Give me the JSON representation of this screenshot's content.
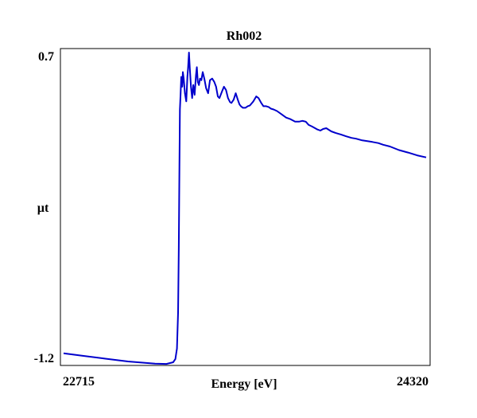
{
  "chart_data": {
    "type": "line",
    "title": "Rh002",
    "xlabel": "Energy [eV]",
    "ylabel": "µt",
    "xlim": [
      22715,
      24320
    ],
    "ylim": [
      -1.2,
      0.7
    ],
    "x_tick_labels": [
      "22715",
      "24320"
    ],
    "y_tick_labels": [
      "0.7",
      "-1.2"
    ],
    "grid": false,
    "legend": "none",
    "series": [
      {
        "color": "#0000cc",
        "points": [
          [
            22715,
            -1.15
          ],
          [
            22800,
            -1.165
          ],
          [
            22900,
            -1.183
          ],
          [
            23000,
            -1.2
          ],
          [
            23120,
            -1.213
          ],
          [
            23170,
            -1.215
          ],
          [
            23200,
            -1.205
          ],
          [
            23210,
            -1.185
          ],
          [
            23217,
            -1.12
          ],
          [
            23222,
            -0.9
          ],
          [
            23225,
            -0.5
          ],
          [
            23228,
            0.0
          ],
          [
            23230,
            0.35
          ],
          [
            23233,
            0.45
          ],
          [
            23236,
            0.55
          ],
          [
            23240,
            0.49
          ],
          [
            23243,
            0.58
          ],
          [
            23247,
            0.54
          ],
          [
            23252,
            0.45
          ],
          [
            23258,
            0.4
          ],
          [
            23263,
            0.55
          ],
          [
            23266,
            0.6
          ],
          [
            23270,
            0.7
          ],
          [
            23274,
            0.6
          ],
          [
            23279,
            0.49
          ],
          [
            23284,
            0.42
          ],
          [
            23289,
            0.5
          ],
          [
            23295,
            0.44
          ],
          [
            23301,
            0.56
          ],
          [
            23305,
            0.61
          ],
          [
            23309,
            0.52
          ],
          [
            23314,
            0.5
          ],
          [
            23319,
            0.54
          ],
          [
            23325,
            0.53
          ],
          [
            23331,
            0.58
          ],
          [
            23338,
            0.54
          ],
          [
            23346,
            0.48
          ],
          [
            23355,
            0.45
          ],
          [
            23363,
            0.53
          ],
          [
            23373,
            0.54
          ],
          [
            23382,
            0.52
          ],
          [
            23390,
            0.49
          ],
          [
            23398,
            0.43
          ],
          [
            23405,
            0.42
          ],
          [
            23416,
            0.46
          ],
          [
            23425,
            0.49
          ],
          [
            23434,
            0.47
          ],
          [
            23443,
            0.42
          ],
          [
            23452,
            0.395
          ],
          [
            23458,
            0.39
          ],
          [
            23468,
            0.41
          ],
          [
            23477,
            0.45
          ],
          [
            23486,
            0.41
          ],
          [
            23494,
            0.38
          ],
          [
            23500,
            0.37
          ],
          [
            23509,
            0.36
          ],
          [
            23520,
            0.36
          ],
          [
            23530,
            0.37
          ],
          [
            23540,
            0.375
          ],
          [
            23555,
            0.4
          ],
          [
            23568,
            0.43
          ],
          [
            23578,
            0.42
          ],
          [
            23590,
            0.39
          ],
          [
            23600,
            0.37
          ],
          [
            23612,
            0.37
          ],
          [
            23623,
            0.365
          ],
          [
            23633,
            0.355
          ],
          [
            23645,
            0.35
          ],
          [
            23660,
            0.34
          ],
          [
            23680,
            0.32
          ],
          [
            23700,
            0.3
          ],
          [
            23720,
            0.29
          ],
          [
            23740,
            0.275
          ],
          [
            23757,
            0.275
          ],
          [
            23772,
            0.28
          ],
          [
            23787,
            0.275
          ],
          [
            23800,
            0.255
          ],
          [
            23815,
            0.245
          ],
          [
            23837,
            0.228
          ],
          [
            23852,
            0.22
          ],
          [
            23864,
            0.23
          ],
          [
            23878,
            0.235
          ],
          [
            23900,
            0.215
          ],
          [
            23920,
            0.205
          ],
          [
            23944,
            0.195
          ],
          [
            23966,
            0.185
          ],
          [
            23990,
            0.175
          ],
          [
            24010,
            0.17
          ],
          [
            24037,
            0.16
          ],
          [
            24060,
            0.155
          ],
          [
            24082,
            0.15
          ],
          [
            24108,
            0.143
          ],
          [
            24130,
            0.133
          ],
          [
            24160,
            0.122
          ],
          [
            24200,
            0.1
          ],
          [
            24240,
            0.085
          ],
          [
            24280,
            0.068
          ],
          [
            24320,
            0.055
          ]
        ]
      }
    ]
  }
}
